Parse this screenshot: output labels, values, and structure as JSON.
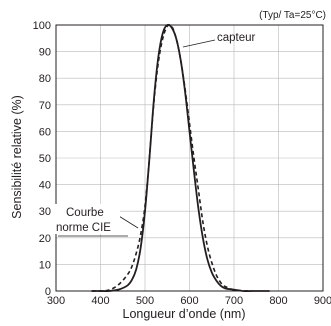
{
  "chart_data": {
    "type": "line",
    "title": "",
    "condition_note": "(Typ/ Ta=25°C)",
    "xlabel": "Longueur d’onde (nm)",
    "ylabel": "Sensibilité relative (%)",
    "xlim": [
      300,
      900
    ],
    "ylim": [
      0,
      100
    ],
    "xticks": [
      300,
      400,
      500,
      600,
      700,
      800,
      900
    ],
    "yticks": [
      0,
      10,
      20,
      30,
      40,
      50,
      60,
      70,
      80,
      90,
      100
    ],
    "grid": true,
    "series": [
      {
        "name": "capteur",
        "style": "solid",
        "x": [
          380,
          400,
          420,
          440,
          460,
          470,
          480,
          490,
          500,
          510,
          520,
          530,
          540,
          550,
          560,
          570,
          580,
          590,
          600,
          610,
          620,
          630,
          640,
          650,
          660,
          670,
          680,
          700,
          720,
          740,
          760,
          780
        ],
        "y": [
          0,
          0,
          0,
          0.5,
          2,
          4,
          8,
          16,
          30,
          50,
          72,
          88,
          97,
          100,
          99,
          95,
          87,
          75,
          60,
          45,
          31,
          20,
          12,
          7,
          4,
          2,
          1,
          0.5,
          0,
          0,
          0,
          0
        ]
      },
      {
        "name": "Courbe norme CIE",
        "style": "dashed",
        "x": [
          380,
          400,
          420,
          440,
          460,
          470,
          480,
          490,
          500,
          510,
          520,
          530,
          540,
          550,
          560,
          570,
          580,
          590,
          600,
          610,
          620,
          630,
          640,
          650,
          660,
          670,
          680,
          700,
          720,
          740
        ],
        "y": [
          0,
          0,
          0.4,
          2.3,
          6,
          9,
          14,
          21,
          32,
          50,
          71,
          86,
          95,
          99.5,
          99.5,
          95,
          87,
          76,
          63,
          50,
          38,
          26,
          17,
          10.7,
          6.1,
          3.2,
          1.7,
          0.4,
          0.1,
          0
        ]
      }
    ],
    "annotations": [
      {
        "text": "capteur"
      },
      {
        "lines": [
          "Courbe",
          "norme CIE"
        ]
      }
    ]
  }
}
